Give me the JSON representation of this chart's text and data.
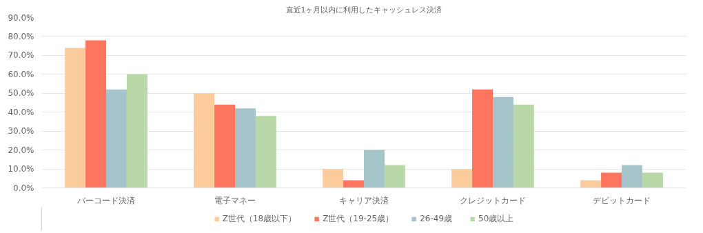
{
  "chart_data": {
    "type": "bar",
    "title": "直近1ヶ月以内に利用したキャッシュレス決済",
    "categories": [
      "バーコード決済",
      "電子マネー",
      "キャリア決済",
      "クレジットカード",
      "デビットカード"
    ],
    "series": [
      {
        "name": "Z世代（18歳以下）",
        "color": "#fbcb9b",
        "values": [
          74,
          50,
          10,
          10,
          4
        ]
      },
      {
        "name": "Z世代（19-25歳）",
        "color": "#fe755f",
        "values": [
          78,
          44,
          4,
          52,
          8
        ]
      },
      {
        "name": "26-49歳",
        "color": "#a5c4c9",
        "values": [
          52,
          42,
          20,
          48,
          12
        ]
      },
      {
        "name": "50歳以上",
        "color": "#b8d8a8",
        "values": [
          60,
          38,
          12,
          44,
          8
        ]
      }
    ],
    "ylim": [
      0,
      90
    ],
    "yticks": [
      {
        "value": 0,
        "label": "0.0%"
      },
      {
        "value": 10,
        "label": "10.0%"
      },
      {
        "value": 20,
        "label": "20.0%"
      },
      {
        "value": 30,
        "label": "30.0%"
      },
      {
        "value": 40,
        "label": "40.0%"
      },
      {
        "value": 50,
        "label": "50.0%"
      },
      {
        "value": 60,
        "label": "60.0%"
      },
      {
        "value": 70,
        "label": "70.0%"
      },
      {
        "value": 80,
        "label": "80.0%"
      },
      {
        "value": 90,
        "label": "90.0%"
      }
    ],
    "grid": "y",
    "legend": "bottom"
  }
}
